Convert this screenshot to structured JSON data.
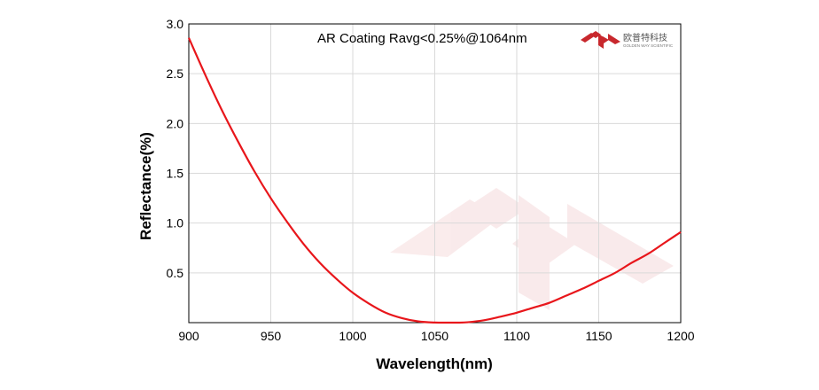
{
  "chart_data": {
    "type": "line",
    "title": "",
    "annotation": "AR Coating Ravg<0.25%@1064nm",
    "xlabel": "Wavelength(nm)",
    "ylabel": "Reflectance(%)",
    "xlim": [
      900,
      1200
    ],
    "ylim": [
      0,
      3.0
    ],
    "xticks": [
      900,
      950,
      1000,
      1050,
      1100,
      1150,
      1200
    ],
    "yticks": [
      0.5,
      1.0,
      1.5,
      2.0,
      2.5,
      3.0
    ],
    "ytick_labels": [
      "0.5",
      "1.0",
      "1.5",
      "2.0",
      "2.5",
      "3.0"
    ],
    "grid": true,
    "series": [
      {
        "color": "#e8161b",
        "x": [
          900,
          910,
          920,
          930,
          940,
          950,
          960,
          970,
          980,
          990,
          1000,
          1010,
          1020,
          1030,
          1040,
          1050,
          1060,
          1064,
          1070,
          1080,
          1090,
          1100,
          1110,
          1120,
          1130,
          1140,
          1150,
          1160,
          1170,
          1180,
          1190,
          1200
        ],
        "y": [
          2.86,
          2.49,
          2.14,
          1.82,
          1.52,
          1.25,
          1.01,
          0.79,
          0.6,
          0.44,
          0.3,
          0.19,
          0.1,
          0.045,
          0.012,
          0.001,
          0.0,
          0.0,
          0.004,
          0.024,
          0.06,
          0.1,
          0.15,
          0.2,
          0.27,
          0.34,
          0.42,
          0.5,
          0.6,
          0.69,
          0.8,
          0.91
        ]
      }
    ]
  },
  "brand": {
    "name_cn": "欧普特科技",
    "name_en": "GOLDEN WAY SCIENTIFIC",
    "color": "#c8282d"
  }
}
